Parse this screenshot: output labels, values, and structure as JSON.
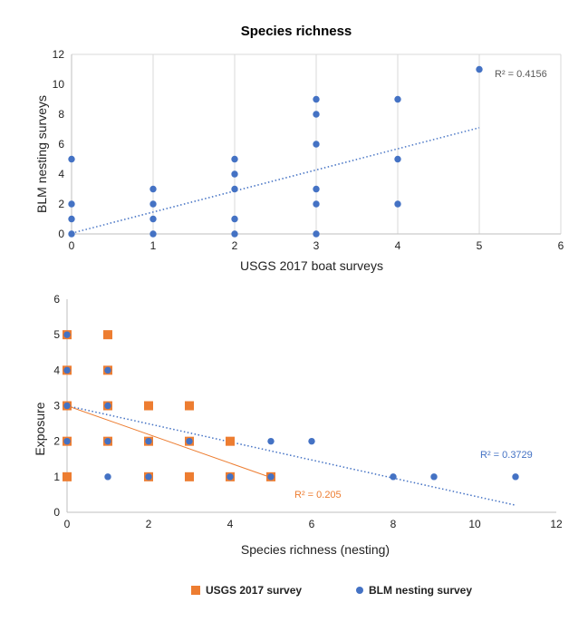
{
  "chart_data": [
    {
      "type": "scatter",
      "title": "Species richness",
      "xlabel": "USGS 2017 boat surveys",
      "ylabel": "BLM nesting surveys",
      "xlim": [
        0,
        6
      ],
      "ylim": [
        0,
        12
      ],
      "xticks": [
        "0",
        "1",
        "2",
        "3",
        "4",
        "5",
        "6"
      ],
      "yticks": [
        "0",
        "2",
        "4",
        "6",
        "8",
        "10",
        "12"
      ],
      "grid": "vertical",
      "series": [
        {
          "name": "Species richness",
          "color": "#4472C4",
          "marker": "circle",
          "points": [
            [
              0,
              0
            ],
            [
              0,
              1
            ],
            [
              0,
              2
            ],
            [
              0,
              5
            ],
            [
              1,
              0
            ],
            [
              1,
              1
            ],
            [
              1,
              2
            ],
            [
              1,
              3
            ],
            [
              2,
              0
            ],
            [
              2,
              1
            ],
            [
              2,
              3
            ],
            [
              2,
              4
            ],
            [
              2,
              5
            ],
            [
              3,
              0
            ],
            [
              3,
              2
            ],
            [
              3,
              3
            ],
            [
              3,
              6
            ],
            [
              3,
              8
            ],
            [
              3,
              9
            ],
            [
              4,
              2
            ],
            [
              4,
              5
            ],
            [
              4,
              9
            ],
            [
              5,
              11
            ]
          ],
          "trendline": {
            "x": [
              0,
              5
            ],
            "y": [
              0.05,
              7.1
            ],
            "style": "dotted",
            "r2_label": "R² = 0.4156"
          }
        }
      ]
    },
    {
      "type": "scatter",
      "xlabel": "Species richness (nesting)",
      "ylabel": "Exposure",
      "xlim": [
        0,
        12
      ],
      "ylim": [
        0,
        6
      ],
      "xticks": [
        "0",
        "2",
        "4",
        "6",
        "8",
        "10",
        "12"
      ],
      "yticks": [
        "0",
        "1",
        "2",
        "3",
        "4",
        "5",
        "6"
      ],
      "grid": "none",
      "legend_position": "bottom",
      "series": [
        {
          "name": "USGS 2017 survey",
          "color": "#ED7D31",
          "marker": "square",
          "points": [
            [
              0,
              1
            ],
            [
              0,
              2
            ],
            [
              0,
              3
            ],
            [
              0,
              4
            ],
            [
              0,
              5
            ],
            [
              1,
              2
            ],
            [
              1,
              3
            ],
            [
              1,
              4
            ],
            [
              1,
              5
            ],
            [
              2,
              1
            ],
            [
              2,
              2
            ],
            [
              2,
              3
            ],
            [
              3,
              1
            ],
            [
              3,
              2
            ],
            [
              3,
              3
            ],
            [
              4,
              1
            ],
            [
              4,
              2
            ],
            [
              5,
              1
            ]
          ],
          "trendline": {
            "x": [
              0,
              5
            ],
            "y": [
              3.0,
              0.98
            ],
            "style": "solid",
            "r2_label": "R² = 0.205"
          }
        },
        {
          "name": "BLM nesting survey",
          "color": "#4472C4",
          "marker": "circle",
          "points": [
            [
              0,
              2
            ],
            [
              0,
              3
            ],
            [
              0,
              4
            ],
            [
              0,
              5
            ],
            [
              1,
              1
            ],
            [
              1,
              2
            ],
            [
              1,
              3
            ],
            [
              1,
              4
            ],
            [
              2,
              1
            ],
            [
              2,
              2
            ],
            [
              3,
              2
            ],
            [
              4,
              1
            ],
            [
              5,
              1
            ],
            [
              5,
              2
            ],
            [
              6,
              2
            ],
            [
              8,
              1
            ],
            [
              9,
              1
            ],
            [
              11,
              1
            ]
          ],
          "trendline": {
            "x": [
              0,
              11
            ],
            "y": [
              3.0,
              0.2
            ],
            "style": "dotted",
            "r2_label": "R² = 0.3729"
          }
        }
      ]
    }
  ]
}
